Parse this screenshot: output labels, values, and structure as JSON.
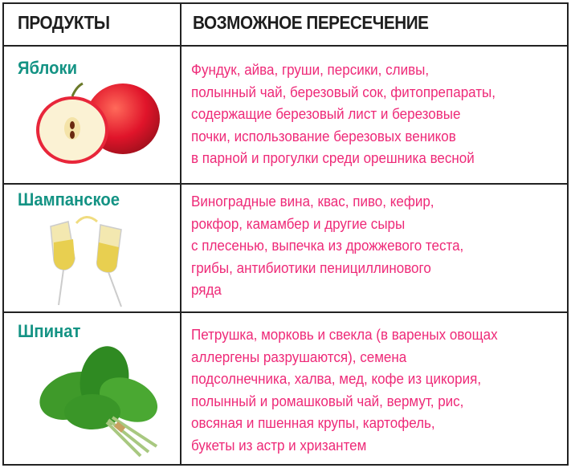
{
  "header": {
    "col1": "ПРОДУКТЫ",
    "col2": "ВОЗМОЖНОЕ ПЕРЕСЕЧЕНИЕ"
  },
  "colors": {
    "name": "#149384",
    "text": "#ee2a78",
    "border": "#222222"
  },
  "rows": [
    {
      "name": "Яблоки",
      "image": "apple-image",
      "lines": [
        "Фундук, айва, груши, персики, сливы,",
        "полынный чай, березовый сок, фитопрепараты,",
        "содержащие березовый лист и березовые",
        "почки, использование березовых веников",
        "в парной и прогулки среди орешника  весной"
      ]
    },
    {
      "name": "Шампанское",
      "image": "champagne-glasses-image",
      "lines": [
        "Виноградные вина, квас, пиво, кефир,",
        "рокфор, камамбер и другие сыры",
        "с плесенью, выпечка из дрожжевого теста,",
        "грибы, антибиотики пенициллинового",
        "ряда"
      ]
    },
    {
      "name": "Шпинат",
      "image": "spinach-image",
      "lines": [
        "Петрушка, морковь и свекла (в вареных овощах",
        "аллергены разрушаются), семена",
        "подсолнечника, халва, мед, кофе из цикория,",
        "полынный и ромашковый чай, вермут, рис,",
        "овсяная и пшенная крупы, картофель,",
        "букеты из астр и хризантем"
      ]
    }
  ]
}
